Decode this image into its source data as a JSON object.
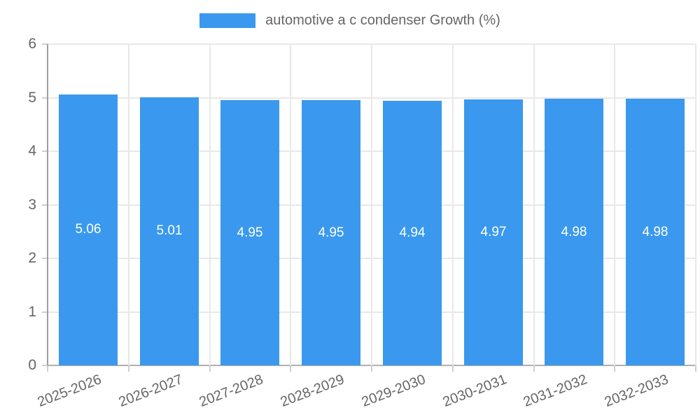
{
  "legend": {
    "label": "automotive a c condenser Growth (%)"
  },
  "chart_data": {
    "type": "bar",
    "title": "automotive a c condenser Growth (%)",
    "categories": [
      "2025-2026",
      "2026-2027",
      "2027-2028",
      "2028-2029",
      "2029-2030",
      "2030-2031",
      "2031-2032",
      "2032-2033"
    ],
    "values": [
      5.06,
      5.01,
      4.95,
      4.95,
      4.94,
      4.97,
      4.98,
      4.98
    ],
    "value_labels": [
      "5.06",
      "5.01",
      "4.95",
      "4.95",
      "4.94",
      "4.97",
      "4.98",
      "4.98"
    ],
    "xlabel": "",
    "ylabel": "",
    "ylim": [
      0,
      6
    ],
    "yticks": [
      0,
      1,
      2,
      3,
      4,
      5,
      6
    ],
    "grid": true,
    "legend_position": "top",
    "x_label_rotation_deg": -21,
    "colors": {
      "bar": "#3a99ee",
      "grid": "#e8e8e8",
      "axis": "#9e9e9e",
      "baseline": "#b0b0b0",
      "tick": "#cfcfcf",
      "text": "#666666",
      "value_text": "#ffffff"
    }
  }
}
